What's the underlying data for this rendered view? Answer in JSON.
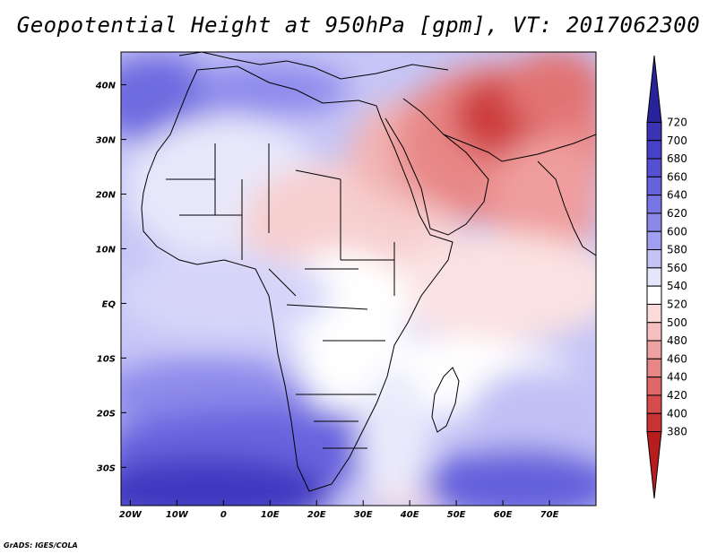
{
  "title": "Geopotential Height at 950hPa [gpm], VT: 2017062300",
  "credit": "GrADS: IGES/COLA",
  "map": {
    "lon_range": [
      -22,
      80
    ],
    "lat_range": [
      -37,
      46
    ],
    "lon_ticks": [
      {
        "value": -20,
        "label": "20W"
      },
      {
        "value": -10,
        "label": "10W"
      },
      {
        "value": 0,
        "label": "0"
      },
      {
        "value": 10,
        "label": "10E"
      },
      {
        "value": 20,
        "label": "20E"
      },
      {
        "value": 30,
        "label": "30E"
      },
      {
        "value": 40,
        "label": "40E"
      },
      {
        "value": 50,
        "label": "50E"
      },
      {
        "value": 60,
        "label": "60E"
      },
      {
        "value": 70,
        "label": "70E"
      }
    ],
    "lat_ticks": [
      {
        "value": 40,
        "label": "40N"
      },
      {
        "value": 30,
        "label": "30N"
      },
      {
        "value": 20,
        "label": "20N"
      },
      {
        "value": 10,
        "label": "10N"
      },
      {
        "value": 0,
        "label": "EQ"
      },
      {
        "value": -10,
        "label": "10S"
      },
      {
        "value": -20,
        "label": "20S"
      },
      {
        "value": -30,
        "label": "30S"
      }
    ],
    "grid": false
  },
  "colorbar": {
    "levels": [
      "720",
      "700",
      "680",
      "660",
      "640",
      "620",
      "600",
      "580",
      "560",
      "540",
      "520",
      "500",
      "480",
      "460",
      "440",
      "420",
      "400",
      "380"
    ],
    "colors": [
      "#28239b",
      "#3a34b4",
      "#4641c8",
      "#5550d2",
      "#6662dc",
      "#7875e4",
      "#8b88ea",
      "#a09ef0",
      "#c4c3f6",
      "#e6e6fb",
      "#ffffff",
      "#fbdada",
      "#f6c0c0",
      "#efa2a2",
      "#e88585",
      "#e06868",
      "#d64c4c",
      "#c93333",
      "#b81d1d"
    ],
    "placement": "right"
  }
}
